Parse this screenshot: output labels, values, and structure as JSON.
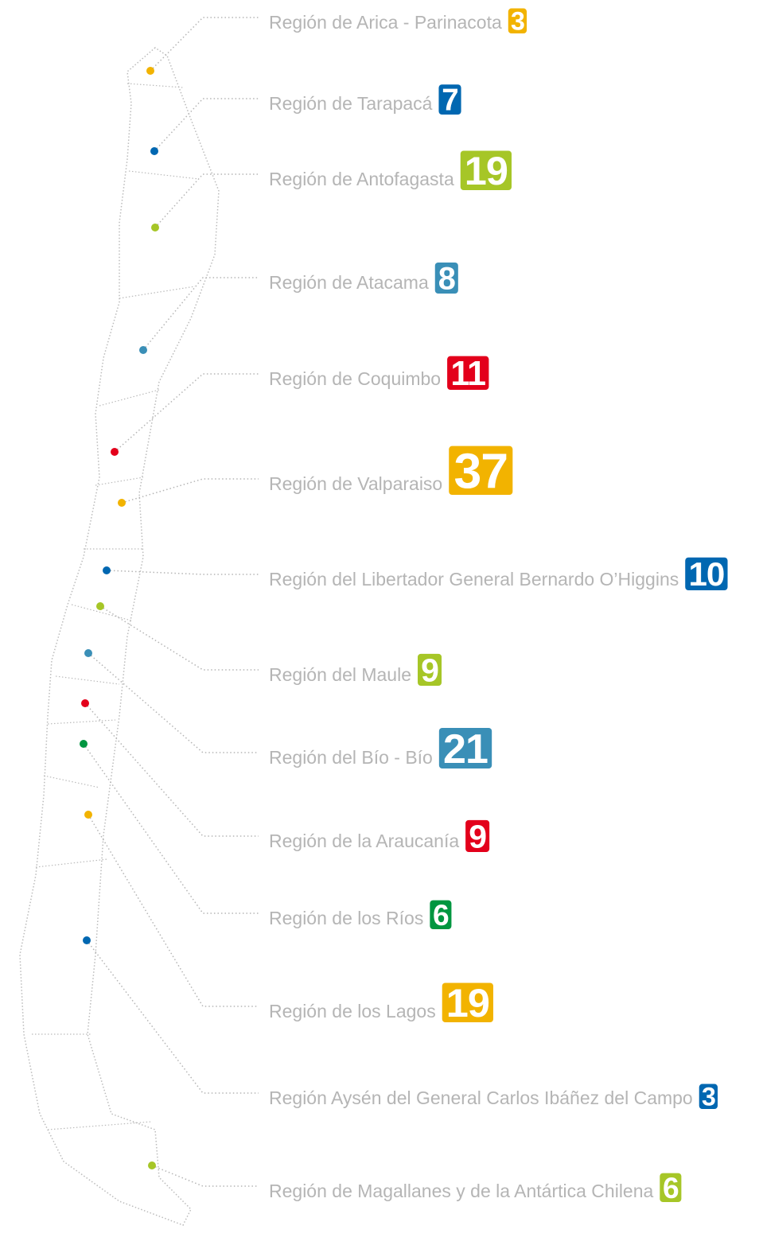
{
  "regions": [
    {
      "name": "Región de Arica - Parinacota",
      "value": 3,
      "color": "#f2b300"
    },
    {
      "name": "Región de Tarapacá",
      "value": 7,
      "color": "#0067b1"
    },
    {
      "name": "Región de Antofagasta",
      "value": 19,
      "color": "#a6c627"
    },
    {
      "name": "Región de Atacama",
      "value": 8,
      "color": "#3a8fb7"
    },
    {
      "name": "Región de Coquimbo",
      "value": 11,
      "color": "#e3001b"
    },
    {
      "name": "Región de Valparaiso",
      "value": 37,
      "color": "#f2b300"
    },
    {
      "name": "Región del Libertador General Bernardo O’Higgins",
      "value": 10,
      "color": "#0067b1"
    },
    {
      "name": "Región del Maule",
      "value": 9,
      "color": "#a6c627"
    },
    {
      "name": "Región del Bío - Bío",
      "value": 21,
      "color": "#3a8fb7"
    },
    {
      "name": "Región de la Araucanía",
      "value": 9,
      "color": "#e3001b"
    },
    {
      "name": "Región de los Ríos",
      "value": 6,
      "color": "#009640"
    },
    {
      "name": "Región de los Lagos",
      "value": 19,
      "color": "#f2b300"
    },
    {
      "name": "Región Aysén del General Carlos Ibáñez del Campo",
      "value": 3,
      "color": "#0067b1"
    },
    {
      "name": "Región de Magallanes y de la Antártica Chilena",
      "value": 6,
      "color": "#a6c627"
    }
  ]
}
